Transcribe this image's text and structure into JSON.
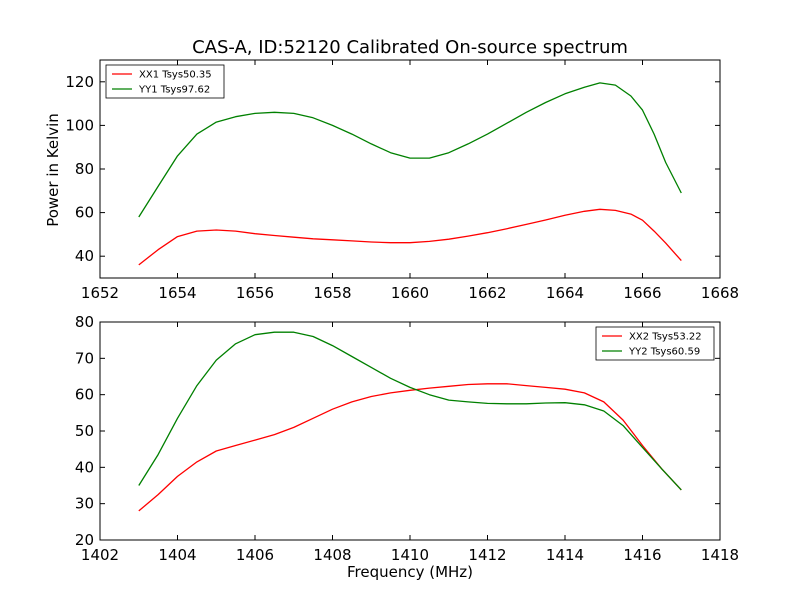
{
  "figure": {
    "title": "CAS-A, ID:52120 Calibrated On-source spectrum",
    "ylabel": "Power in Kelvin",
    "xlabel": "Frequency (MHz)"
  },
  "chart_data": [
    {
      "type": "line",
      "xlim": [
        1652,
        1668
      ],
      "ylim": [
        30,
        130
      ],
      "xticks": [
        1652,
        1654,
        1656,
        1658,
        1660,
        1662,
        1664,
        1666,
        1668
      ],
      "yticks": [
        40,
        60,
        80,
        100,
        120
      ],
      "legend_position": "top-left",
      "series": [
        {
          "name": "XX1 Tsys50.35",
          "color": "#ff0000",
          "x": [
            1653,
            1653.5,
            1654,
            1654.5,
            1655,
            1655.5,
            1656,
            1656.5,
            1657,
            1657.5,
            1658,
            1658.5,
            1659,
            1659.5,
            1660,
            1660.5,
            1661,
            1661.5,
            1662,
            1662.5,
            1663,
            1663.5,
            1664,
            1664.5,
            1664.9,
            1665.3,
            1665.7,
            1666,
            1666.3,
            1666.6,
            1667
          ],
          "y": [
            36,
            43,
            49,
            51.5,
            52,
            51.5,
            50.3,
            49.5,
            48.7,
            48,
            47.5,
            47,
            46.5,
            46.2,
            46.2,
            46.8,
            47.8,
            49.2,
            50.8,
            52.6,
            54.6,
            56.6,
            58.8,
            60.6,
            61.5,
            61,
            59.3,
            56.5,
            51.5,
            46,
            38
          ]
        },
        {
          "name": "YY1 Tsys97.62",
          "color": "#008000",
          "x": [
            1653,
            1653.5,
            1654,
            1654.5,
            1655,
            1655.5,
            1656,
            1656.5,
            1657,
            1657.5,
            1658,
            1658.5,
            1659,
            1659.5,
            1660,
            1660.5,
            1661,
            1661.5,
            1662,
            1662.5,
            1663,
            1663.5,
            1664,
            1664.5,
            1664.9,
            1665.3,
            1665.7,
            1666,
            1666.3,
            1666.6,
            1667
          ],
          "y": [
            58,
            72,
            86,
            96,
            101.5,
            104,
            105.5,
            106,
            105.5,
            103.5,
            100,
            96,
            91.5,
            87.5,
            85,
            85,
            87.5,
            91.5,
            96,
            101,
            106,
            110.5,
            114.5,
            117.5,
            119.5,
            118.5,
            113.5,
            107,
            96,
            83,
            69
          ]
        }
      ]
    },
    {
      "type": "line",
      "xlim": [
        1402,
        1418
      ],
      "ylim": [
        20,
        80
      ],
      "xticks": [
        1402,
        1404,
        1406,
        1408,
        1410,
        1412,
        1414,
        1416,
        1418
      ],
      "yticks": [
        20,
        30,
        40,
        50,
        60,
        70,
        80
      ],
      "legend_position": "top-right",
      "series": [
        {
          "name": "XX2 Tsys53.22",
          "color": "#ff0000",
          "x": [
            1403,
            1403.5,
            1404,
            1404.5,
            1405,
            1405.5,
            1406,
            1406.5,
            1407,
            1407.5,
            1408,
            1408.5,
            1409,
            1409.5,
            1410,
            1410.5,
            1411,
            1411.5,
            1412,
            1412.5,
            1413,
            1413.5,
            1414,
            1414.5,
            1415,
            1415.5,
            1416,
            1416.5,
            1417
          ],
          "y": [
            28,
            32.5,
            37.5,
            41.5,
            44.5,
            46,
            47.5,
            49,
            51,
            53.5,
            56,
            58,
            59.5,
            60.5,
            61.2,
            61.8,
            62.3,
            62.8,
            63,
            63,
            62.5,
            62,
            61.5,
            60.5,
            58,
            53,
            46,
            39.5,
            33.8
          ]
        },
        {
          "name": "YY2 Tsys60.59",
          "color": "#008000",
          "x": [
            1403,
            1403.5,
            1404,
            1404.5,
            1405,
            1405.5,
            1406,
            1406.5,
            1407,
            1407.5,
            1408,
            1408.5,
            1409,
            1409.5,
            1410,
            1410.5,
            1411,
            1411.5,
            1412,
            1412.5,
            1413,
            1413.5,
            1414,
            1414.5,
            1415,
            1415.5,
            1416,
            1416.5,
            1417
          ],
          "y": [
            35,
            43.5,
            53.5,
            62.5,
            69.5,
            74,
            76.5,
            77.2,
            77.2,
            76,
            73.5,
            70.5,
            67.5,
            64.5,
            62,
            60,
            58.5,
            58,
            57.6,
            57.5,
            57.5,
            57.7,
            57.8,
            57.2,
            55.5,
            51.5,
            45.5,
            39.5,
            33.8
          ]
        }
      ]
    }
  ]
}
